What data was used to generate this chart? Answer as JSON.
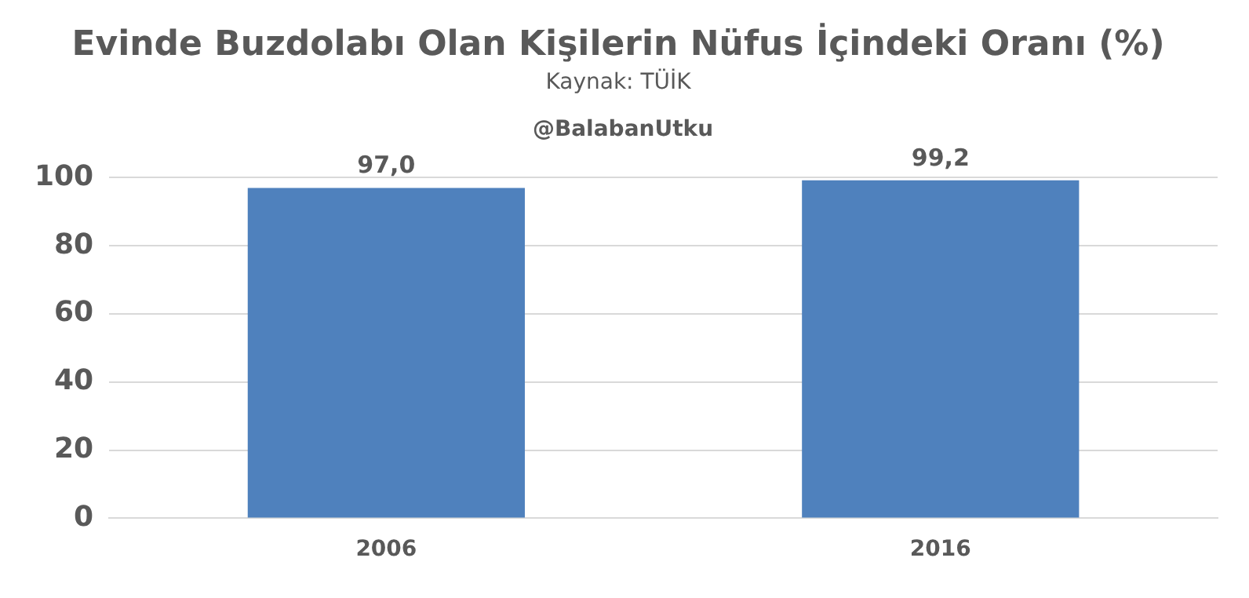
{
  "chart_data": {
    "type": "bar",
    "title": "Evinde Buzdolabı Olan Kişilerin Nüfus İçindeki Oranı (%)",
    "subtitle": "Kaynak: TÜİK",
    "annotations": [
      "@BalabanUtku"
    ],
    "categories": [
      "2006",
      "2016"
    ],
    "values": [
      97.0,
      99.2
    ],
    "value_labels": [
      "97,0",
      "99,2"
    ],
    "color": "#4f81bd",
    "ylim": [
      0,
      100
    ],
    "yticks": [
      0,
      20,
      40,
      60,
      80,
      100
    ],
    "grid": "y",
    "legend": false
  }
}
